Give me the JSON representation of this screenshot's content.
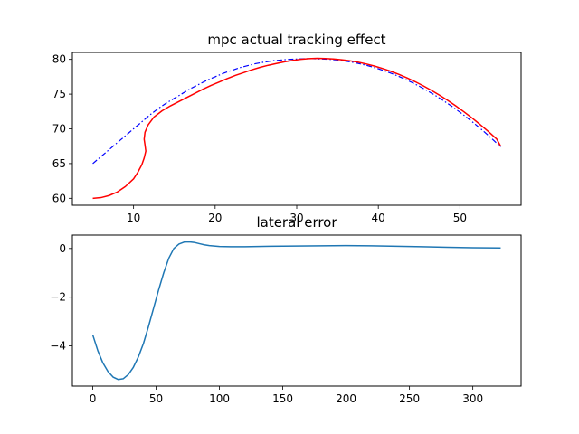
{
  "chart_data": [
    {
      "type": "line",
      "title": "mpc actual tracking effect",
      "xlabel": "",
      "ylabel": "",
      "xlim": [
        2.5,
        57.5
      ],
      "ylim": [
        59.0,
        81.0
      ],
      "xticks": [
        10,
        20,
        30,
        40,
        50
      ],
      "yticks": [
        60,
        65,
        70,
        75,
        80
      ],
      "grid": false,
      "series": [
        {
          "color": "#0000ff",
          "style": "dashdot",
          "x": [
            5.0,
            6.0,
            7.0,
            8.0,
            9.0,
            10.0,
            11.0,
            12.0,
            13.0,
            14.0,
            15.0,
            16.0,
            17.0,
            18.0,
            19.0,
            20.0,
            21.0,
            22.0,
            23.0,
            24.0,
            25.0,
            26.0,
            27.0,
            28.0,
            29.0,
            30.0,
            31.0,
            32.0,
            33.0,
            34.0,
            35.0,
            36.0,
            37.0,
            38.0,
            39.0,
            40.0,
            41.0,
            42.0,
            43.0,
            44.0,
            45.0,
            46.0,
            47.0,
            48.0,
            49.0,
            50.0,
            51.0,
            52.0,
            53.0,
            54.0,
            55.0
          ],
          "y": [
            65.0,
            66.0,
            67.0,
            68.0,
            69.0,
            70.0,
            71.0,
            72.0,
            72.9,
            73.7,
            74.4,
            75.1,
            75.8,
            76.4,
            77.0,
            77.5,
            78.0,
            78.4,
            78.8,
            79.1,
            79.4,
            79.6,
            79.8,
            79.9,
            80.0,
            80.05,
            80.1,
            80.1,
            80.05,
            80.0,
            79.9,
            79.75,
            79.55,
            79.3,
            79.0,
            78.65,
            78.25,
            77.8,
            77.3,
            76.75,
            76.15,
            75.5,
            74.8,
            74.05,
            73.25,
            72.4,
            71.5,
            70.55,
            69.55,
            68.5,
            67.4
          ]
        },
        {
          "color": "#ff0000",
          "style": "solid",
          "x": [
            5.0,
            6.0,
            7.0,
            8.0,
            9.0,
            10.0,
            10.5,
            11.0,
            11.3,
            11.5,
            11.4,
            11.3,
            11.4,
            11.8,
            12.5,
            13.5,
            14.5,
            15.5,
            16.5,
            17.5,
            18.5,
            19.5,
            20.5,
            21.5,
            22.5,
            23.5,
            24.5,
            25.5,
            26.5,
            27.5,
            28.5,
            29.5,
            30.5,
            31.5,
            32.5,
            33.5,
            34.5,
            35.5,
            36.5,
            37.5,
            38.5,
            39.5,
            40.5,
            41.5,
            42.5,
            43.5,
            44.5,
            45.5,
            46.5,
            47.5,
            48.5,
            49.5,
            50.5,
            51.5,
            52.5,
            53.5,
            54.5,
            55.0
          ],
          "y": [
            60.0,
            60.1,
            60.4,
            60.9,
            61.7,
            62.8,
            63.7,
            64.8,
            65.8,
            66.8,
            67.7,
            68.5,
            69.5,
            70.6,
            71.7,
            72.6,
            73.3,
            73.9,
            74.5,
            75.1,
            75.7,
            76.25,
            76.75,
            77.25,
            77.7,
            78.1,
            78.5,
            78.85,
            79.15,
            79.4,
            79.65,
            79.85,
            80.0,
            80.1,
            80.15,
            80.12,
            80.05,
            79.95,
            79.8,
            79.6,
            79.35,
            79.05,
            78.7,
            78.3,
            77.85,
            77.35,
            76.8,
            76.2,
            75.55,
            74.85,
            74.1,
            73.3,
            72.45,
            71.55,
            70.6,
            69.6,
            68.55,
            67.5
          ]
        }
      ]
    },
    {
      "type": "line",
      "title": "lateral error",
      "xlabel": "",
      "ylabel": "",
      "xlim": [
        -16.1,
        338.1
      ],
      "ylim": [
        -5.65,
        0.55
      ],
      "xticks": [
        0,
        50,
        100,
        150,
        200,
        250,
        300
      ],
      "yticks": [
        0,
        -2,
        -4
      ],
      "ytick_labels": [
        "0",
        "−2",
        "−4"
      ],
      "grid": false,
      "series": [
        {
          "color": "#1f77b4",
          "style": "solid",
          "x": [
            0,
            4,
            8,
            12,
            16,
            20,
            24,
            28,
            32,
            36,
            40,
            44,
            48,
            52,
            56,
            60,
            64,
            68,
            72,
            76,
            80,
            84,
            88,
            92,
            96,
            100,
            110,
            120,
            140,
            160,
            180,
            200,
            220,
            240,
            260,
            280,
            300,
            322
          ],
          "y": [
            -3.55,
            -4.2,
            -4.7,
            -5.05,
            -5.28,
            -5.38,
            -5.35,
            -5.18,
            -4.88,
            -4.45,
            -3.9,
            -3.2,
            -2.45,
            -1.7,
            -1.0,
            -0.4,
            0.0,
            0.18,
            0.26,
            0.27,
            0.25,
            0.2,
            0.15,
            0.12,
            0.1,
            0.08,
            0.07,
            0.07,
            0.09,
            0.1,
            0.11,
            0.12,
            0.11,
            0.09,
            0.07,
            0.05,
            0.03,
            0.02
          ]
        }
      ]
    }
  ]
}
